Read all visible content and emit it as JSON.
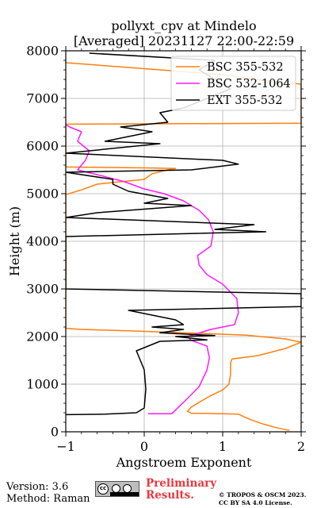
{
  "chart_data": {
    "type": "line",
    "title": "pollyxt_cpv at Mindelo",
    "subtitle": "[Averaged] 20231127 22:00-22:59",
    "xlabel": "Angstroem Exponent",
    "ylabel": "Height (m)",
    "xlim": [
      -1,
      2
    ],
    "ylim": [
      0,
      8000
    ],
    "xticks": [
      "−1",
      "0",
      "1",
      "2"
    ],
    "yticks": [
      "0",
      "1000",
      "2000",
      "3000",
      "4000",
      "5000",
      "6000",
      "7000",
      "8000"
    ],
    "grid": true,
    "legend_position": "top-right",
    "series": [
      {
        "name": "BSC 355-532",
        "color": "#ff7f0e",
        "points": [
          [
            1.85,
            30
          ],
          [
            1.7,
            80
          ],
          [
            1.52,
            160
          ],
          [
            1.35,
            260
          ],
          [
            1.2,
            370
          ],
          [
            1.0,
            380
          ],
          [
            0.6,
            390
          ],
          [
            0.55,
            430
          ],
          [
            0.6,
            520
          ],
          [
            0.7,
            620
          ],
          [
            0.85,
            760
          ],
          [
            1.0,
            880
          ],
          [
            1.08,
            1000
          ],
          [
            1.1,
            1200
          ],
          [
            1.1,
            1450
          ],
          [
            1.12,
            1530
          ],
          [
            1.45,
            1600
          ],
          [
            1.8,
            1750
          ],
          [
            2.0,
            1880
          ],
          [
            1.8,
            1950
          ],
          [
            1.3,
            2030
          ],
          [
            0.5,
            2080
          ],
          [
            -0.2,
            2120
          ],
          [
            -0.8,
            2150
          ],
          [
            -1.0,
            2170
          ],
          [
            -1.0,
            4980
          ],
          [
            -0.8,
            5080
          ],
          [
            -0.6,
            5200
          ],
          [
            -0.3,
            5250
          ],
          [
            0.0,
            5300
          ],
          [
            0.1,
            5420
          ],
          [
            0.3,
            5500
          ],
          [
            0.4,
            5530
          ],
          [
            0.1,
            5540
          ],
          [
            -1.0,
            5560
          ],
          [
            -1.0,
            6460
          ],
          [
            0.5,
            6470
          ],
          [
            2.0,
            6480
          ],
          [
            2.0,
            7300
          ],
          [
            1.5,
            7380
          ],
          [
            1.0,
            7500
          ],
          [
            0.2,
            7600
          ],
          [
            -1.0,
            7750
          ]
        ]
      },
      {
        "name": "BSC 532-1064",
        "color": "#ff1aff",
        "points": [
          [
            0.05,
            380
          ],
          [
            0.35,
            380
          ],
          [
            0.55,
            700
          ],
          [
            0.7,
            950
          ],
          [
            0.8,
            1300
          ],
          [
            0.83,
            1550
          ],
          [
            0.8,
            1800
          ],
          [
            0.6,
            1920
          ],
          [
            0.55,
            2000
          ],
          [
            0.85,
            2150
          ],
          [
            1.15,
            2250
          ],
          [
            1.2,
            2500
          ],
          [
            1.18,
            2800
          ],
          [
            1.0,
            3100
          ],
          [
            0.8,
            3300
          ],
          [
            0.7,
            3500
          ],
          [
            0.68,
            3700
          ],
          [
            0.85,
            3900
          ],
          [
            0.88,
            4200
          ],
          [
            0.82,
            4450
          ],
          [
            0.7,
            4650
          ],
          [
            0.5,
            4850
          ],
          [
            0.25,
            5000
          ],
          [
            0.0,
            5100
          ],
          [
            -0.25,
            5250
          ],
          [
            -0.6,
            5400
          ],
          [
            -0.85,
            5500
          ],
          [
            -0.75,
            5700
          ],
          [
            -0.7,
            5900
          ],
          [
            -0.85,
            6100
          ],
          [
            -0.8,
            6300
          ],
          [
            -0.95,
            6400
          ],
          [
            -1.0,
            6450
          ]
        ]
      },
      {
        "name": "EXT 355-532",
        "color": "#000000",
        "points": [
          [
            -1.0,
            360
          ],
          [
            -0.5,
            370
          ],
          [
            -0.1,
            400
          ],
          [
            0.0,
            500
          ],
          [
            0.01,
            700
          ],
          [
            0.02,
            900
          ],
          [
            0.01,
            1100
          ],
          [
            0.0,
            1300
          ],
          [
            -0.05,
            1500
          ],
          [
            -0.1,
            1700
          ],
          [
            0.2,
            1900
          ],
          [
            0.8,
            1930
          ],
          [
            0.4,
            2000
          ],
          [
            0.9,
            2020
          ],
          [
            0.2,
            2080
          ],
          [
            0.5,
            2150
          ],
          [
            0.1,
            2200
          ],
          [
            0.5,
            2250
          ],
          [
            0.4,
            2350
          ],
          [
            0.1,
            2450
          ],
          [
            -0.2,
            2550
          ],
          [
            2.0,
            2630
          ],
          [
            2.0,
            2900
          ],
          [
            -1.0,
            3000
          ],
          [
            -1.0,
            4100
          ],
          [
            1.55,
            4200
          ],
          [
            0.9,
            4250
          ],
          [
            1.4,
            4350
          ],
          [
            -1.0,
            4500
          ],
          [
            -0.6,
            4600
          ],
          [
            0.6,
            4750
          ],
          [
            0.0,
            4800
          ],
          [
            0.3,
            4900
          ],
          [
            -0.2,
            5050
          ],
          [
            -0.4,
            5200
          ],
          [
            -0.4,
            5300
          ],
          [
            -1.0,
            5450
          ],
          [
            0.6,
            5500
          ],
          [
            1.2,
            5620
          ],
          [
            1.0,
            5700
          ],
          [
            -1.0,
            5850
          ],
          [
            0.2,
            6050
          ],
          [
            -0.5,
            6100
          ],
          [
            0.1,
            6300
          ],
          [
            -0.3,
            6400
          ],
          [
            0.3,
            6500
          ],
          [
            0.2,
            6700
          ],
          [
            0.5,
            6800
          ],
          [
            0.8,
            7000
          ],
          [
            1.1,
            7200
          ],
          [
            0.9,
            7400
          ],
          [
            0.7,
            7600
          ],
          [
            0.9,
            7800
          ],
          [
            -0.7,
            7950
          ]
        ]
      }
    ]
  },
  "footer": {
    "version": "Version: 3.6",
    "method": "Method: Raman",
    "preliminary_line1": "Preliminary",
    "preliminary_line2": "Results.",
    "copyright_line1": "© TROPOS & OSCM 2023.",
    "copyright_line2": "CC BY SA 4.0 License."
  },
  "license_badge": {
    "icon": "cc-by-sa-icon",
    "cc_text": "cc"
  }
}
